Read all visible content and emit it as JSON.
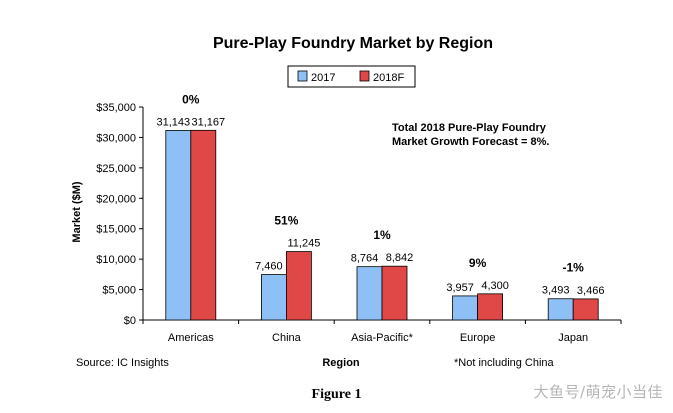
{
  "chart_data": {
    "type": "bar",
    "title": "Pure-Play Foundry Market by Region",
    "xlabel": "Region",
    "ylabel": "Market ($M)",
    "categories": [
      "Americas",
      "China",
      "Asia-Pacific*",
      "Europe",
      "Japan"
    ],
    "series": [
      {
        "name": "2017",
        "values": [
          31143,
          7460,
          8764,
          3957,
          3493
        ],
        "labels": [
          "31,143",
          "7,460",
          "8,764",
          "3,957",
          "3,493"
        ],
        "color": "#8fc0f5"
      },
      {
        "name": "2018F",
        "values": [
          31167,
          11245,
          8842,
          4300,
          3466
        ],
        "labels": [
          "31,167",
          "11,245",
          "8,842",
          "4,300",
          "3,466"
        ],
        "color": "#e04848"
      }
    ],
    "growth_labels": [
      "0%",
      "51%",
      "1%",
      "9%",
      "-1%"
    ],
    "ylim": [
      0,
      35000
    ],
    "yticks": [
      0,
      5000,
      10000,
      15000,
      20000,
      25000,
      30000,
      35000
    ],
    "ytick_labels": [
      "$0",
      "$5,000",
      "$10,000",
      "$15,000",
      "$20,000",
      "$25,000",
      "$30,000",
      "$35,000"
    ],
    "annotation": [
      "Total 2018 Pure-Play Foundry",
      "Market Growth Forecast = 8%."
    ],
    "legend_position": "top-center"
  },
  "source": "Source: IC Insights",
  "footnote": "*Not including China",
  "caption": "Figure 1",
  "watermark": "大鱼号/萌宠小当佳"
}
